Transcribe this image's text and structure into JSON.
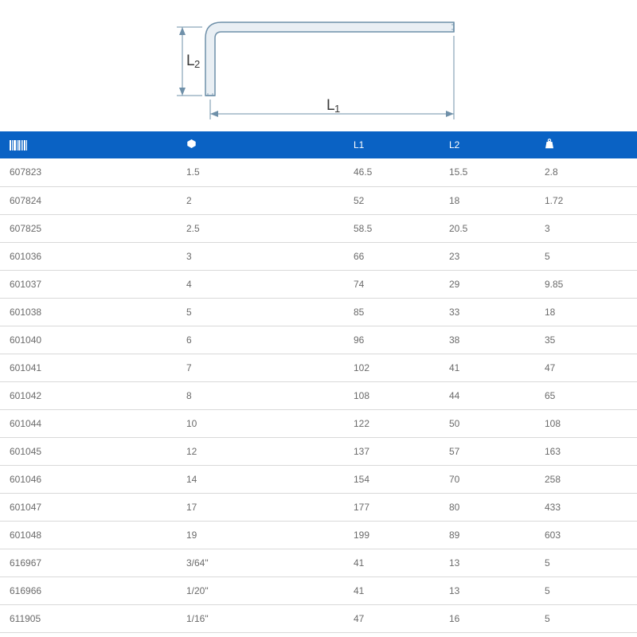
{
  "diagram": {
    "L1_label": "L1",
    "L2_label": "L2",
    "stroke_color": "#6f90a9",
    "fill_color": "#e9eff4",
    "label_color": "#3a3a3a",
    "arrow_color": "#6f90a9"
  },
  "table": {
    "header_bg": "#0a62c4",
    "header_fg": "#ffffff",
    "row_border": "#d9d9d9",
    "text_color": "#6a6a6a",
    "columns": {
      "code": {
        "icon": "barcode-icon"
      },
      "size": {
        "icon": "hex-icon"
      },
      "l1": {
        "label": "L1"
      },
      "l2": {
        "label": "L2"
      },
      "weight": {
        "icon": "weight-icon"
      }
    },
    "rows": [
      {
        "code": "607823",
        "size": "1.5",
        "l1": "46.5",
        "l2": "15.5",
        "weight": "2.8"
      },
      {
        "code": "607824",
        "size": "2",
        "l1": "52",
        "l2": "18",
        "weight": "1.72"
      },
      {
        "code": "607825",
        "size": "2.5",
        "l1": "58.5",
        "l2": "20.5",
        "weight": "3"
      },
      {
        "code": "601036",
        "size": "3",
        "l1": "66",
        "l2": "23",
        "weight": "5"
      },
      {
        "code": "601037",
        "size": "4",
        "l1": "74",
        "l2": "29",
        "weight": "9.85"
      },
      {
        "code": "601038",
        "size": "5",
        "l1": "85",
        "l2": "33",
        "weight": "18"
      },
      {
        "code": "601040",
        "size": "6",
        "l1": "96",
        "l2": "38",
        "weight": "35"
      },
      {
        "code": "601041",
        "size": "7",
        "l1": "102",
        "l2": "41",
        "weight": "47"
      },
      {
        "code": "601042",
        "size": "8",
        "l1": "108",
        "l2": "44",
        "weight": "65"
      },
      {
        "code": "601044",
        "size": "10",
        "l1": "122",
        "l2": "50",
        "weight": "108"
      },
      {
        "code": "601045",
        "size": "12",
        "l1": "137",
        "l2": "57",
        "weight": "163"
      },
      {
        "code": "601046",
        "size": "14",
        "l1": "154",
        "l2": "70",
        "weight": "258"
      },
      {
        "code": "601047",
        "size": "17",
        "l1": "177",
        "l2": "80",
        "weight": "433"
      },
      {
        "code": "601048",
        "size": "19",
        "l1": "199",
        "l2": "89",
        "weight": "603"
      },
      {
        "code": "616967",
        "size": "3/64\"",
        "l1": "41",
        "l2": "13",
        "weight": "5"
      },
      {
        "code": "616966",
        "size": "1/20\"",
        "l1": "41",
        "l2": "13",
        "weight": "5"
      },
      {
        "code": "611905",
        "size": "1/16\"",
        "l1": "47",
        "l2": "16",
        "weight": "5"
      }
    ]
  }
}
